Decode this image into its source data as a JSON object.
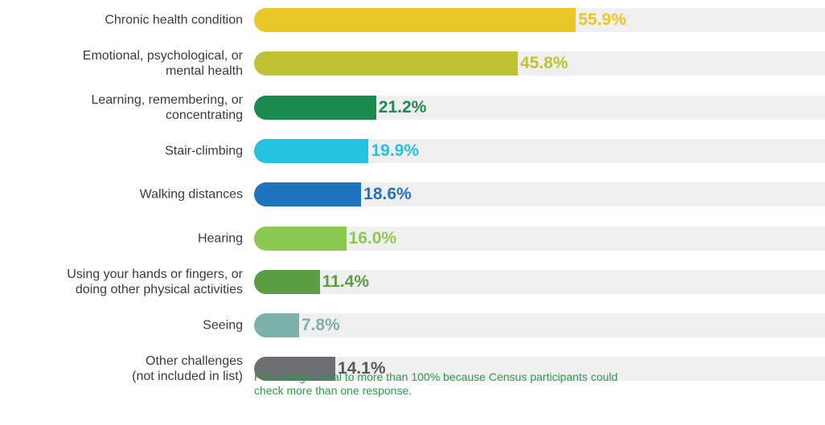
{
  "chart_data": {
    "type": "bar",
    "orientation": "horizontal",
    "categories": [
      "Chronic health condition",
      "Emotional, psychological, or\nmental health",
      "Learning, remembering, or\nconcentrating",
      "Stair-climbing",
      "Walking distances",
      "Hearing",
      "Using your hands or fingers, or\ndoing other physical activities",
      "Seeing",
      "Other challenges\n(not included in list)"
    ],
    "values": [
      55.9,
      45.8,
      21.2,
      19.9,
      18.6,
      16.0,
      11.4,
      7.8,
      14.1
    ],
    "value_labels": [
      "55.9%",
      "45.8%",
      "21.2%",
      "19.9%",
      "18.6%",
      "16.0%",
      "11.4%",
      "7.8%",
      "14.1%"
    ],
    "colors": [
      "#e9c724",
      "#c0c133",
      "#1b8a4f",
      "#25c1e1",
      "#1f74bd",
      "#8dc853",
      "#5a9d43",
      "#7cb1a9",
      "#6e6f73"
    ],
    "label_colors": [
      "#e9c724",
      "#c0c133",
      "#1b8a4f",
      "#25c1e1",
      "#1f74bd",
      "#8dc853",
      "#5a9d43",
      "#7cb1a9",
      "#58595b"
    ],
    "xlim": [
      0,
      100
    ],
    "note": "Percentages total to more than 100% because Census participants could check more than one response."
  }
}
